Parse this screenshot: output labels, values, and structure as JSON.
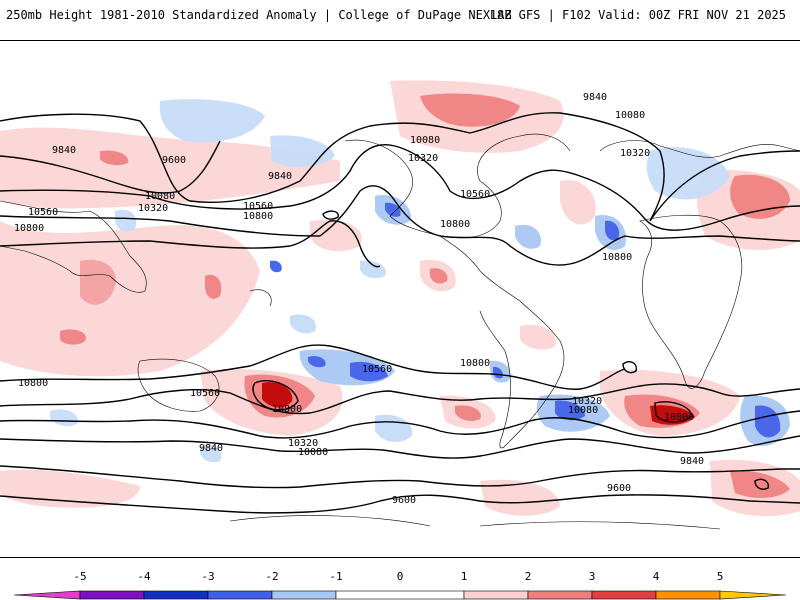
{
  "header": {
    "title": "250mb Height 1981-2010 Standardized Anomaly | College of DuPage NEXLAB",
    "run_info": "18Z GFS | F102 Valid: 00Z FRI NOV 21 2025"
  },
  "map": {
    "field": "250mb Height Standardized Anomaly",
    "contour_labels": [
      "9840",
      "9600",
      "10080",
      "10320",
      "10560",
      "10800",
      "9840",
      "10080",
      "10320",
      "10560",
      "10800",
      "10800",
      "10560",
      "9840",
      "10320",
      "10800",
      "10080",
      "10320",
      "10800",
      "10560",
      "10800",
      "10320",
      "10080",
      "9840",
      "9600",
      "9600",
      "10800",
      "10560",
      "10320",
      "10080",
      "10800",
      "9840"
    ]
  },
  "colorbar": {
    "ticks": [
      "-5",
      "-4",
      "-3",
      "-2",
      "-1",
      "0",
      "1",
      "2",
      "3",
      "4",
      "5"
    ],
    "colors": [
      "#e040c8",
      "#8010c0",
      "#1030c0",
      "#4060e8",
      "#a8c8f4",
      "#ffffff",
      "#fcd0d0",
      "#f08080",
      "#e04040",
      "#c00000",
      "#ff9000",
      "#ffc800"
    ]
  }
}
